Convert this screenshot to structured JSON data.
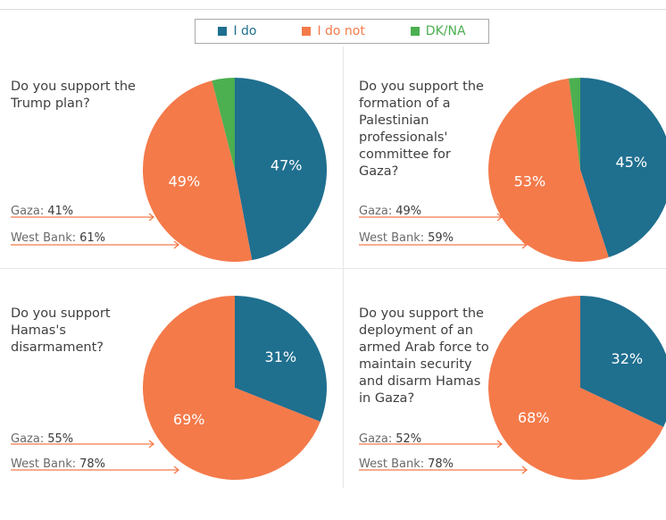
{
  "legend": {
    "items": [
      {
        "label": "I do",
        "color": "#1f6f8f"
      },
      {
        "label": "I do not",
        "color": "#f47a4a"
      },
      {
        "label": "DK/NA",
        "color": "#4caf50"
      }
    ]
  },
  "colors": {
    "i_do": "#1f6f8f",
    "i_do_not": "#f47a4a",
    "dk_na": "#4caf50",
    "arrow": "#f47a4a"
  },
  "chart_data": [
    {
      "type": "pie",
      "question": "Do you support the Trump plan?",
      "slices": [
        {
          "category": "I do",
          "value": 47,
          "label": "47%"
        },
        {
          "category": "I do not",
          "value": 49,
          "label": "49%"
        },
        {
          "category": "DK/NA",
          "value": 4,
          "label": ""
        }
      ],
      "stats": [
        {
          "label": "Gaza:",
          "value": "41%"
        },
        {
          "label": "West Bank:",
          "value": "61%"
        }
      ]
    },
    {
      "type": "pie",
      "question": "Do you support the formation of a Palestinian professionals' committee for Gaza?",
      "slices": [
        {
          "category": "I do",
          "value": 45,
          "label": "45%"
        },
        {
          "category": "I do not",
          "value": 53,
          "label": "53%"
        },
        {
          "category": "DK/NA",
          "value": 2,
          "label": ""
        }
      ],
      "stats": [
        {
          "label": "Gaza:",
          "value": "49%"
        },
        {
          "label": "West Bank:",
          "value": "59%"
        }
      ]
    },
    {
      "type": "pie",
      "question": "Do you support Hamas's disarmament?",
      "slices": [
        {
          "category": "I do",
          "value": 31,
          "label": "31%"
        },
        {
          "category": "I do not",
          "value": 69,
          "label": "69%"
        }
      ],
      "stats": [
        {
          "label": "Gaza:",
          "value": "55%"
        },
        {
          "label": "West Bank:",
          "value": "78%"
        }
      ]
    },
    {
      "type": "pie",
      "question": "Do you support the deployment of an armed Arab force to maintain security and disarm Hamas in Gaza?",
      "slices": [
        {
          "category": "I do",
          "value": 32,
          "label": "32%"
        },
        {
          "category": "I do not",
          "value": 68,
          "label": "68%"
        }
      ],
      "stats": [
        {
          "label": "Gaza:",
          "value": "52%"
        },
        {
          "label": "West Bank:",
          "value": "78%"
        }
      ]
    }
  ]
}
